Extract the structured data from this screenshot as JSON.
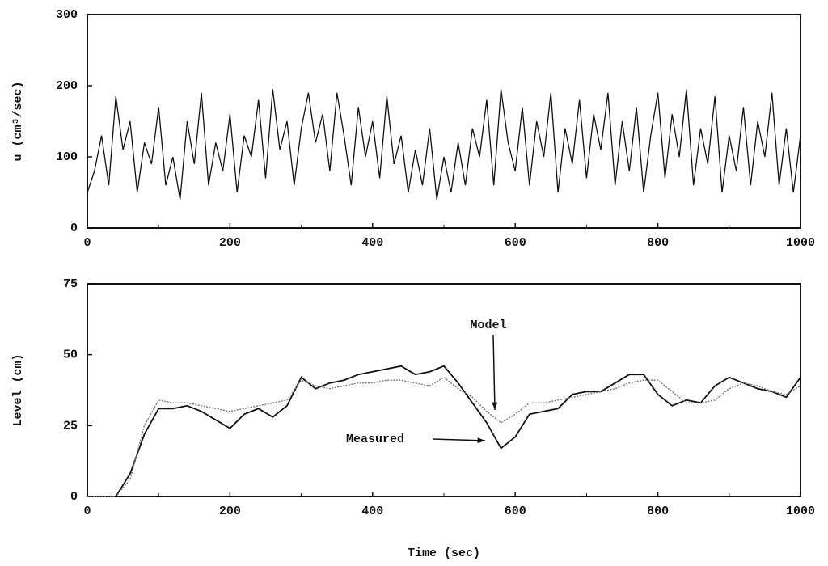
{
  "chart_data": [
    {
      "type": "line",
      "ylabel": "u (cm³/sec)",
      "color": "#111111",
      "x": [
        0,
        10,
        20,
        30,
        40,
        50,
        60,
        70,
        80,
        90,
        100,
        110,
        120,
        130,
        140,
        150,
        160,
        170,
        180,
        190,
        200,
        210,
        220,
        230,
        240,
        250,
        260,
        270,
        280,
        290,
        300,
        310,
        320,
        330,
        340,
        350,
        360,
        370,
        380,
        390,
        400,
        410,
        420,
        430,
        440,
        450,
        460,
        470,
        480,
        490,
        500,
        510,
        520,
        530,
        540,
        550,
        560,
        570,
        580,
        590,
        600,
        610,
        620,
        630,
        640,
        650,
        660,
        670,
        680,
        690,
        700,
        710,
        720,
        730,
        740,
        750,
        760,
        770,
        780,
        790,
        800,
        810,
        820,
        830,
        840,
        850,
        860,
        870,
        880,
        890,
        900,
        910,
        920,
        930,
        940,
        950,
        960,
        970,
        980,
        990,
        1000
      ],
      "values": [
        50,
        80,
        130,
        60,
        185,
        110,
        150,
        50,
        120,
        90,
        170,
        60,
        100,
        40,
        150,
        90,
        190,
        60,
        120,
        80,
        160,
        50,
        130,
        100,
        180,
        70,
        195,
        110,
        150,
        60,
        140,
        190,
        120,
        160,
        80,
        190,
        130,
        60,
        170,
        100,
        150,
        70,
        185,
        90,
        130,
        50,
        110,
        60,
        140,
        40,
        100,
        50,
        120,
        60,
        140,
        100,
        180,
        60,
        195,
        120,
        80,
        170,
        60,
        150,
        100,
        190,
        50,
        140,
        90,
        180,
        70,
        160,
        110,
        190,
        60,
        150,
        80,
        170,
        50,
        130,
        190,
        70,
        160,
        100,
        195,
        60,
        140,
        90,
        185,
        50,
        130,
        80,
        170,
        60,
        150,
        100,
        190,
        60,
        140,
        50,
        130
      ],
      "xlim": [
        0,
        1000
      ],
      "xticks": [
        0,
        200,
        400,
        600,
        800,
        1000
      ],
      "ylim": [
        0,
        300
      ],
      "yticks": [
        0,
        100,
        200,
        300
      ]
    },
    {
      "type": "line",
      "xlabel": "Time (sec)",
      "ylabel": "Level (cm)",
      "x": [
        0,
        20,
        40,
        60,
        80,
        100,
        120,
        140,
        160,
        180,
        200,
        220,
        240,
        260,
        280,
        300,
        320,
        340,
        360,
        380,
        400,
        420,
        440,
        460,
        480,
        500,
        520,
        540,
        560,
        580,
        600,
        620,
        640,
        660,
        680,
        700,
        720,
        740,
        760,
        780,
        800,
        820,
        840,
        860,
        880,
        900,
        920,
        940,
        960,
        980,
        1000
      ],
      "series": [
        {
          "name": "Measured",
          "color": "#111111",
          "values": [
            0,
            0,
            0,
            8,
            22,
            31,
            31,
            32,
            30,
            27,
            24,
            29,
            31,
            28,
            32,
            42,
            38,
            40,
            41,
            43,
            44,
            45,
            46,
            43,
            44,
            46,
            40,
            33,
            26,
            17,
            21,
            29,
            30,
            31,
            36,
            37,
            37,
            40,
            43,
            43,
            36,
            32,
            34,
            33,
            39,
            42,
            40,
            38,
            37,
            35,
            42
          ]
        },
        {
          "name": "Model",
          "color": "#777777",
          "values": [
            0,
            0,
            0,
            6,
            25,
            34,
            33,
            33,
            32,
            31,
            30,
            31,
            32,
            33,
            34,
            41,
            39,
            38,
            39,
            40,
            40,
            41,
            41,
            40,
            39,
            42,
            38,
            35,
            30,
            26,
            29,
            33,
            33,
            34,
            35,
            36,
            37,
            38,
            40,
            41,
            41,
            37,
            33,
            33,
            34,
            38,
            40,
            39,
            37,
            36,
            39
          ]
        }
      ],
      "xlim": [
        0,
        1000
      ],
      "xticks": [
        0,
        200,
        400,
        600,
        800,
        1000
      ],
      "ylim": [
        0,
        75
      ],
      "yticks": [
        0,
        25,
        50,
        75
      ]
    }
  ]
}
